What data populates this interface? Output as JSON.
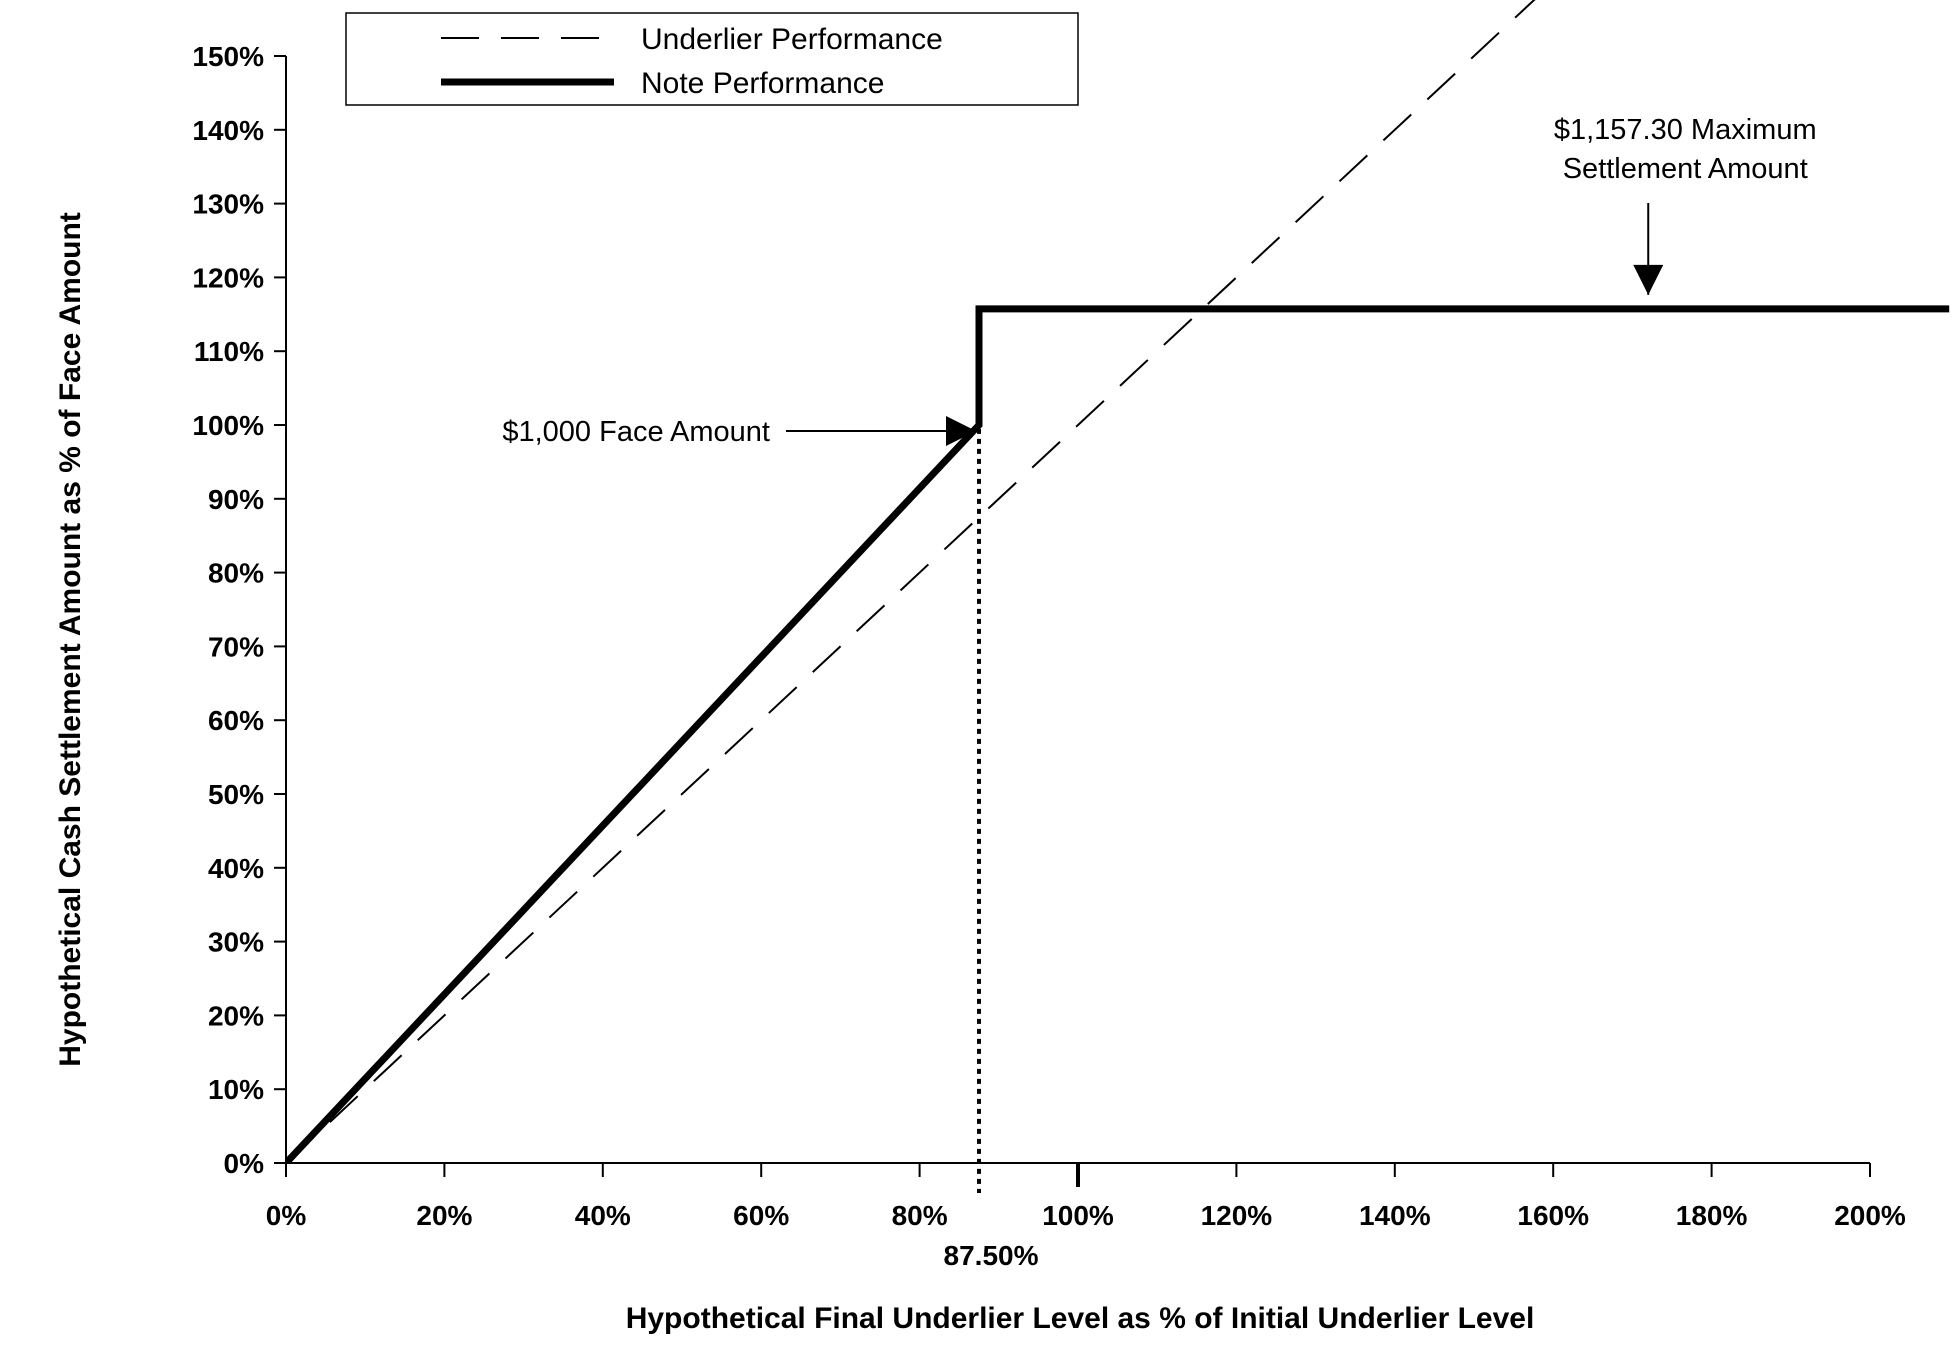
{
  "chart_data": {
    "type": "line",
    "xlabel": "Hypothetical Final Underlier Level as % of Initial Underlier Level",
    "ylabel": "Hypothetical Cash Settlement Amount as % of Face Amount",
    "xlim": [
      0,
      200
    ],
    "ylim": [
      0,
      150
    ],
    "x_ticks": [
      "0%",
      "20%",
      "40%",
      "60%",
      "80%",
      "100%",
      "120%",
      "140%",
      "160%",
      "180%",
      "200%"
    ],
    "x_tick_values": [
      0,
      20,
      40,
      60,
      80,
      100,
      120,
      140,
      160,
      180,
      200
    ],
    "y_ticks": [
      "0%",
      "10%",
      "20%",
      "30%",
      "40%",
      "50%",
      "60%",
      "70%",
      "80%",
      "90%",
      "100%",
      "110%",
      "120%",
      "130%",
      "140%",
      "150%"
    ],
    "y_tick_values": [
      0,
      10,
      20,
      30,
      40,
      50,
      60,
      70,
      80,
      90,
      100,
      110,
      120,
      130,
      140,
      150
    ],
    "grid": false,
    "legend_position": "top-left",
    "series": [
      {
        "name": "Underlier Performance",
        "style": "dashed",
        "points": [
          [
            0,
            0
          ],
          [
            200,
            200
          ]
        ]
      },
      {
        "name": "Note Performance",
        "style": "solid-thick",
        "points": [
          [
            0,
            0
          ],
          [
            87.5,
            100
          ],
          [
            87.5,
            115.73
          ],
          [
            210,
            115.73
          ]
        ]
      }
    ],
    "reference_line": {
      "x": 87.5,
      "label": "87.50%",
      "style": "dotted"
    },
    "annotations": [
      {
        "lines": [
          "$1,000 Face Amount"
        ],
        "points_to": [
          87.5,
          100
        ]
      },
      {
        "lines": [
          "$1,157.30 Maximum",
          "Settlement Amount"
        ],
        "points_to": [
          172,
          115.73
        ]
      }
    ]
  }
}
